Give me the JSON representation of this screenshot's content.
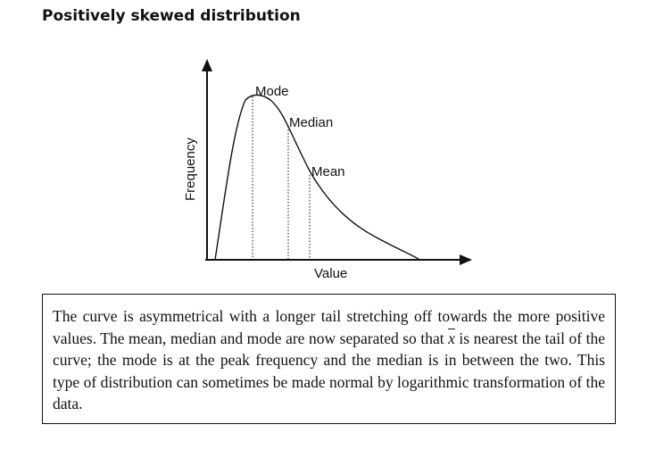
{
  "title": "Positively skewed distribution",
  "diagram": {
    "y_axis_label": "Frequency",
    "x_axis_label": "Value",
    "markers": {
      "mode": "Mode",
      "median": "Median",
      "mean": "Mean"
    }
  },
  "caption": {
    "part1": "The curve is asymmetrical with a longer tail stretching off towards the more positive values. The mean, median and mode are now separated so that ",
    "symbol": "x",
    "part2": " is nearest the tail of the curve; the mode is at the peak frequency and the median is in between the two. This type of distribution can sometimes be made normal by logarithmic transformation of the data."
  }
}
